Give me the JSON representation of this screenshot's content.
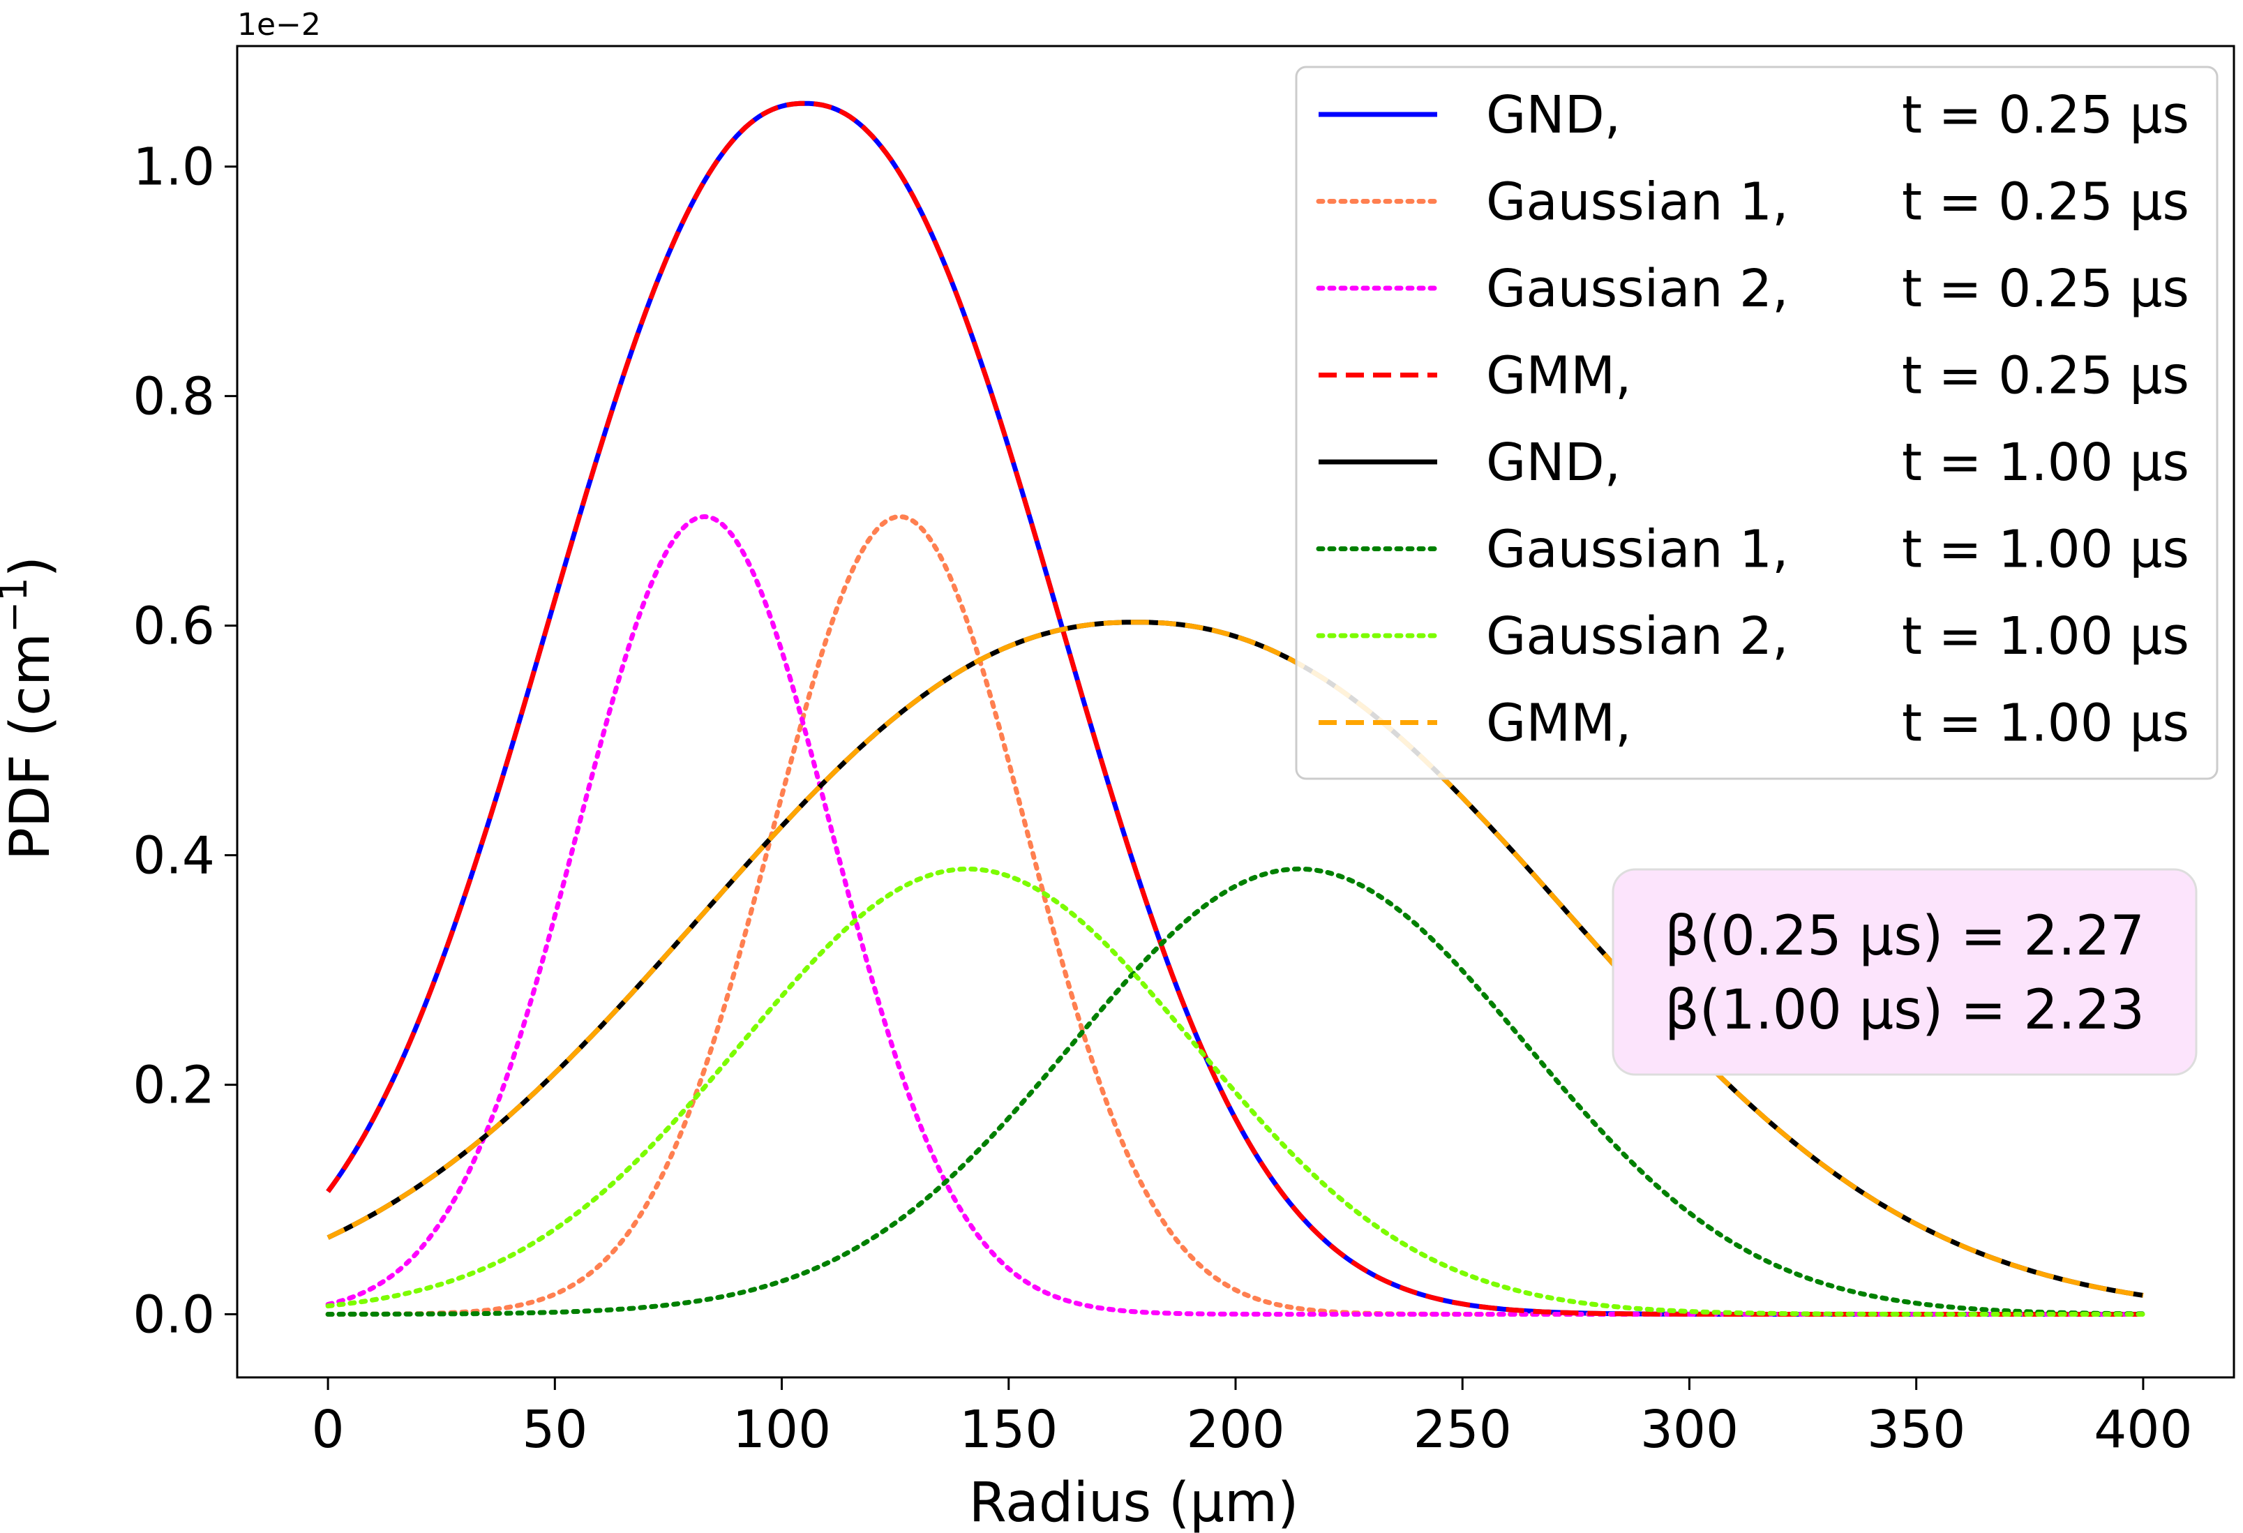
{
  "chart_data": {
    "type": "line",
    "title": "",
    "xlabel": "Radius (µm)",
    "ylabel": "PDF (cm",
    "ylabel_sup": "−1",
    "ylabel_close": ")",
    "y_offset_label": "1e−2",
    "xlim": [
      -20,
      420
    ],
    "ylim": [
      -0.055,
      1.105
    ],
    "x_ticks": [
      0,
      50,
      100,
      150,
      200,
      250,
      300,
      350,
      400
    ],
    "x_tick_labels": [
      "0",
      "50",
      "100",
      "150",
      "200",
      "250",
      "300",
      "350",
      "400"
    ],
    "y_ticks": [
      0.0,
      0.2,
      0.4,
      0.6,
      0.8,
      1.0
    ],
    "y_tick_labels": [
      "0.0",
      "0.2",
      "0.4",
      "0.6",
      "0.8",
      "1.0"
    ],
    "grid": false,
    "legend_position": "top-right",
    "series": [
      {
        "name": "GND,",
        "time": "t = 0.25 µs",
        "color": "#0000ff",
        "style": "solid",
        "kind": "gnd",
        "mu": 105,
        "alpha": 72.9,
        "beta": 2.27,
        "scale": 1.055
      },
      {
        "name": "Gaussian 1,",
        "time": "t = 0.25 µs",
        "color": "#ff7f50",
        "style": "dotted",
        "kind": "gauss",
        "mu": 126,
        "sigma": 28,
        "amp": 0.695
      },
      {
        "name": "Gaussian 2,",
        "time": "t = 0.25 µs",
        "color": "#ff00ff",
        "style": "dotted",
        "kind": "gauss",
        "mu": 83,
        "sigma": 28,
        "amp": 0.695
      },
      {
        "name": "GMM,",
        "time": "t = 0.25 µs",
        "color": "#ff0000",
        "style": "dashed",
        "kind": "gnd",
        "mu": 105,
        "alpha": 72.9,
        "beta": 2.27,
        "scale": 1.055
      },
      {
        "name": "GND,",
        "time": "t = 1.00 µs",
        "color": "#000000",
        "style": "solid",
        "kind": "gnd",
        "mu": 178,
        "alpha": 125,
        "beta": 2.23,
        "scale": 0.603
      },
      {
        "name": "Gaussian 1,",
        "time": "t = 1.00 µs",
        "color": "#008000",
        "style": "dotted",
        "kind": "gauss",
        "mu": 214,
        "sigma": 50,
        "amp": 0.388
      },
      {
        "name": "Gaussian 2,",
        "time": "t = 1.00 µs",
        "color": "#7cfc00",
        "style": "dotted",
        "kind": "gauss",
        "mu": 141,
        "sigma": 50,
        "amp": 0.388
      },
      {
        "name": "GMM,",
        "time": "t = 1.00 µs",
        "color": "#ffa500",
        "style": "dashed",
        "kind": "gnd",
        "mu": 178,
        "alpha": 125,
        "beta": 2.23,
        "scale": 0.603
      }
    ],
    "annotation": {
      "line1": "β(0.25 μs) = 2.27",
      "line2": "β(1.00 μs) = 2.23",
      "background": "#fce4fc"
    }
  }
}
